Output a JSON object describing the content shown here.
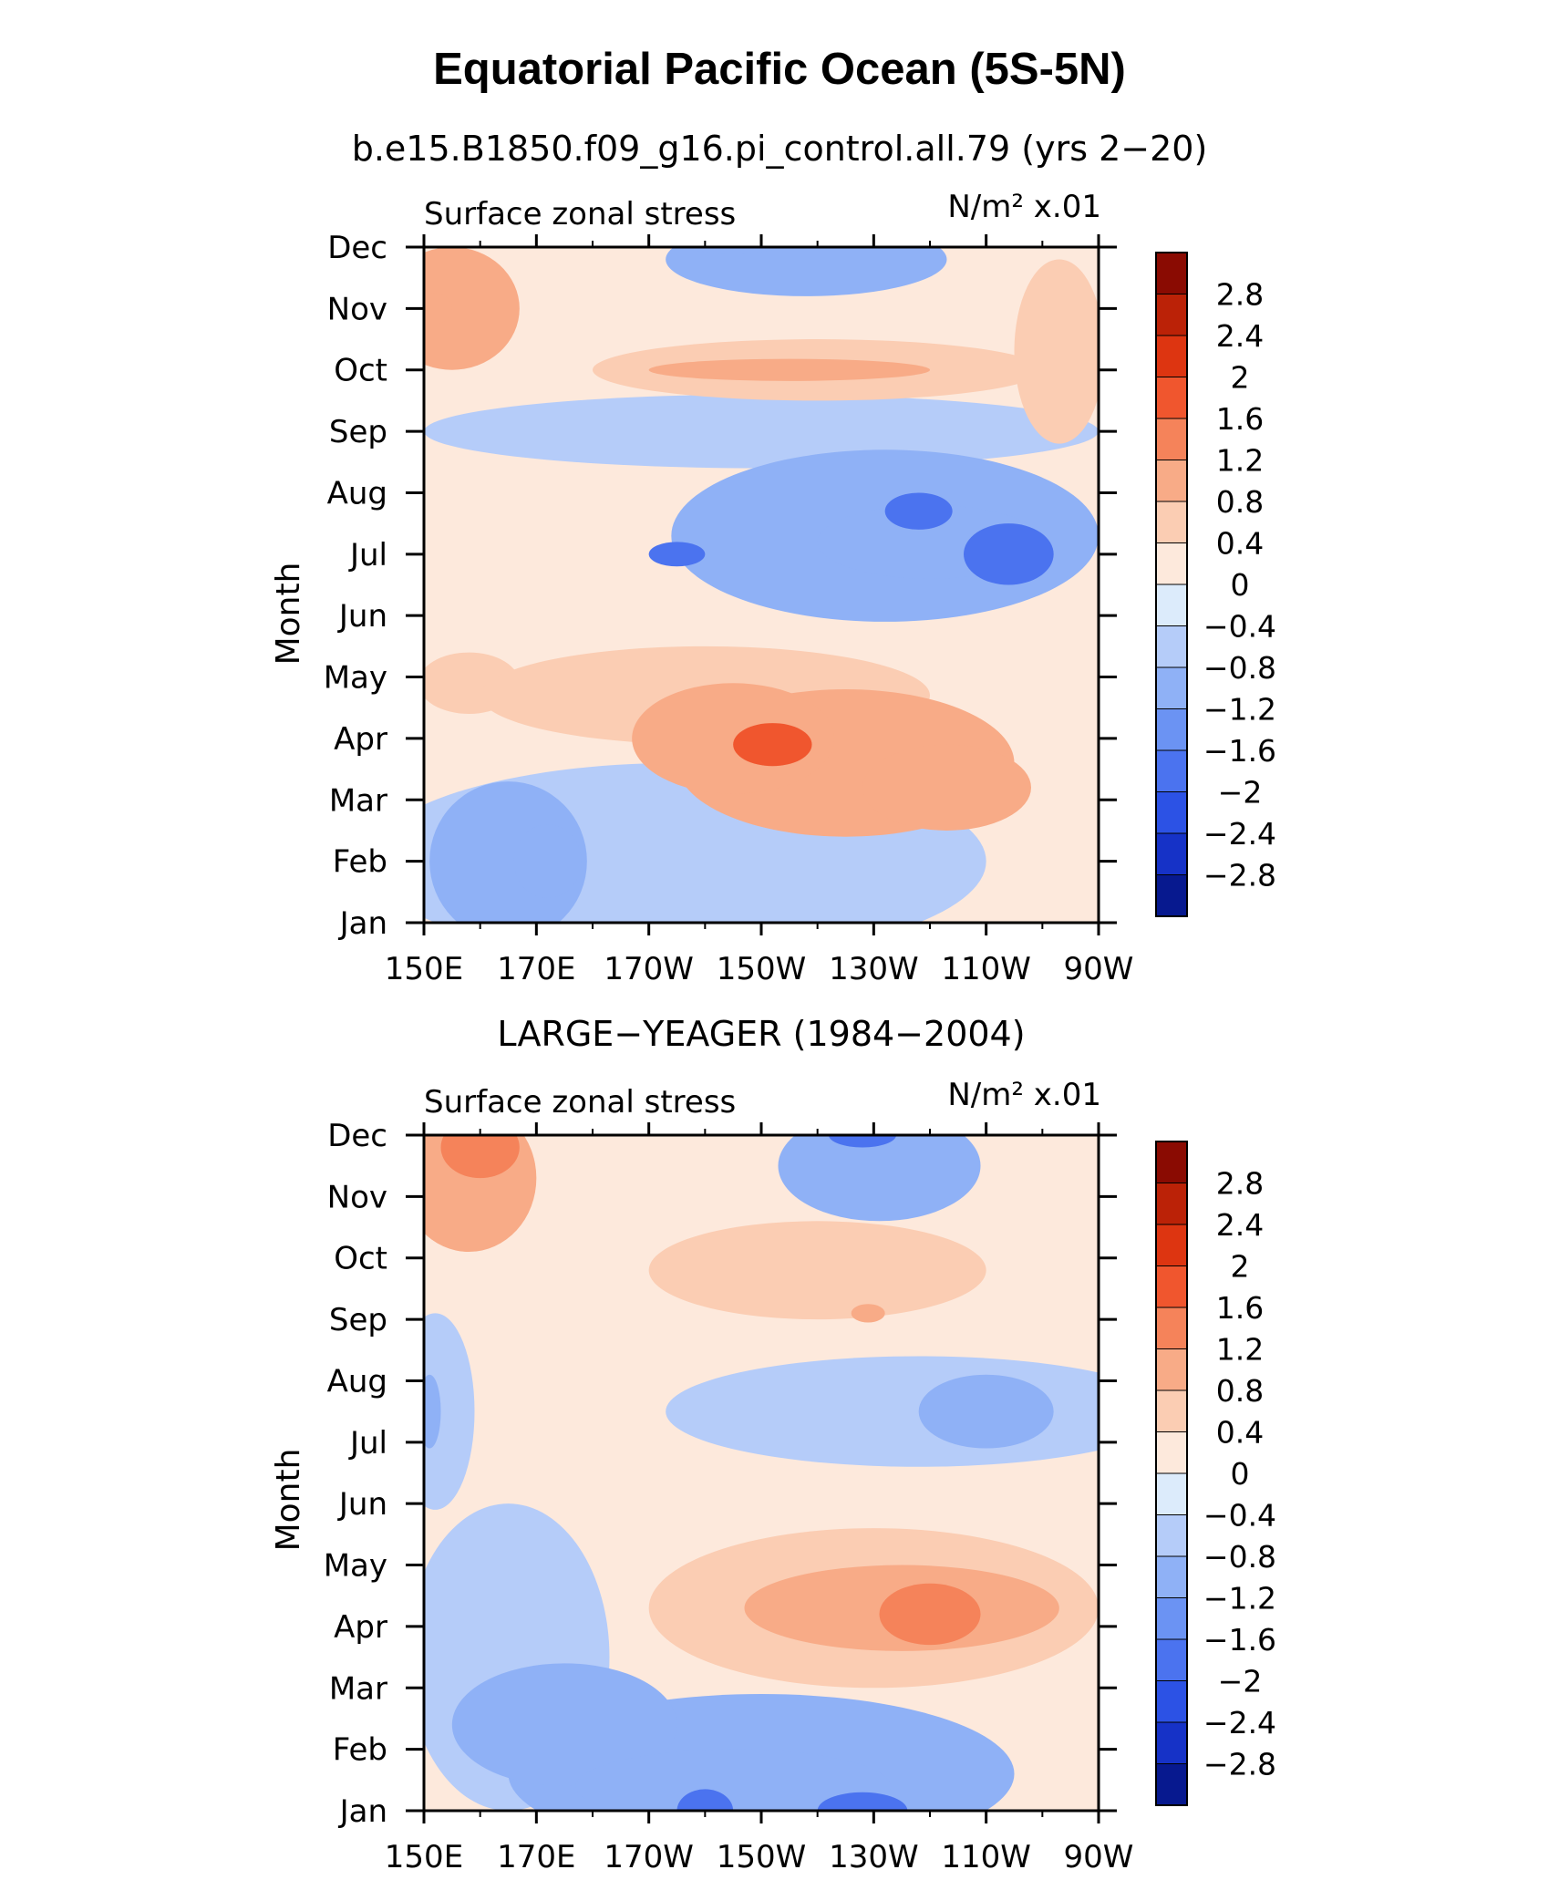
{
  "title": "Equatorial Pacific Ocean (5S-5N)",
  "colors": {
    "levels_neg": [
      "#dcebfb",
      "#b5ccf9",
      "#8fb1f6",
      "#6b93f3",
      "#4b73ef",
      "#2c52e5",
      "#1632c7",
      "#07198f"
    ],
    "levels_pos": [
      "#fde9dc",
      "#fbcdb3",
      "#f8ab87",
      "#f5835a",
      "#f0562e",
      "#dd3511",
      "#bb2207",
      "#8a0b02"
    ],
    "axis": "#000000"
  },
  "chart_data": [
    {
      "type": "heatmap",
      "title": "b.e15.B1850.f09_g16.pi_control.all.79 (yrs 2−20)",
      "left_label": "Surface zonal stress",
      "right_label_units": "N/m²",
      "right_label_scale": "x.01",
      "ylabel": "Month",
      "x_ticks": [
        "150E",
        "170E",
        "170W",
        "150W",
        "130W",
        "110W",
        "90W"
      ],
      "x_lon": [
        150,
        170,
        190,
        210,
        230,
        250,
        270
      ],
      "y_ticks": [
        "Jan",
        "Feb",
        "Mar",
        "Apr",
        "May",
        "Jun",
        "Jul",
        "Aug",
        "Sep",
        "Oct",
        "Nov",
        "Dec"
      ],
      "xlim": [
        150,
        270
      ],
      "ylim": [
        1,
        12
      ],
      "colorbar_labels": [
        "2.8",
        "2.4",
        "2",
        "1.6",
        "1.2",
        "0.8",
        "0.4",
        "0",
        "−0.4",
        "−0.8",
        "−1.2",
        "−1.6",
        "−2",
        "−2.4",
        "−2.8"
      ],
      "features": [
        {
          "lon": 195,
          "month": 2.0,
          "value": -0.5,
          "rx": 55,
          "ry": 1.6
        },
        {
          "lon": 165,
          "month": 2.0,
          "value": -0.8,
          "rx": 14,
          "ry": 1.3
        },
        {
          "lon": 172,
          "month": 2.0,
          "value": -1.0,
          "rx": 6,
          "ry": 0.6
        },
        {
          "lon": 225,
          "month": 3.6,
          "value": 0.8,
          "rx": 30,
          "ry": 1.2
        },
        {
          "lon": 205,
          "month": 4.0,
          "value": 1.2,
          "rx": 18,
          "ry": 0.9
        },
        {
          "lon": 212,
          "month": 3.9,
          "value": 1.6,
          "rx": 7,
          "ry": 0.35
        },
        {
          "lon": 243,
          "month": 3.2,
          "value": 0.8,
          "rx": 15,
          "ry": 0.7
        },
        {
          "lon": 200,
          "month": 4.7,
          "value": 0.6,
          "rx": 40,
          "ry": 0.8
        },
        {
          "lon": 158,
          "month": 4.9,
          "value": 0.4,
          "rx": 9,
          "ry": 0.5
        },
        {
          "lon": 232,
          "month": 7.3,
          "value": -0.8,
          "rx": 38,
          "ry": 1.4
        },
        {
          "lon": 240,
          "month": 7.2,
          "value": -1.2,
          "rx": 20,
          "ry": 0.6
        },
        {
          "lon": 254,
          "month": 7.0,
          "value": -1.6,
          "rx": 8,
          "ry": 0.5
        },
        {
          "lon": 238,
          "month": 7.7,
          "value": -1.6,
          "rx": 6,
          "ry": 0.3
        },
        {
          "lon": 195,
          "month": 7.0,
          "value": -1.6,
          "rx": 5,
          "ry": 0.2
        },
        {
          "lon": 210,
          "month": 9.0,
          "value": -0.4,
          "rx": 60,
          "ry": 0.6
        },
        {
          "lon": 220,
          "month": 10.0,
          "value": 0.4,
          "rx": 40,
          "ry": 0.5
        },
        {
          "lon": 215,
          "month": 10.0,
          "value": 0.8,
          "rx": 25,
          "ry": 0.18
        },
        {
          "lon": 155,
          "month": 11.0,
          "value": 0.8,
          "rx": 12,
          "ry": 1.0
        },
        {
          "lon": 152,
          "month": 11.0,
          "value": 1.2,
          "rx": 3,
          "ry": 0.25
        },
        {
          "lon": 218,
          "month": 11.8,
          "value": -0.8,
          "rx": 25,
          "ry": 0.6
        },
        {
          "lon": 205,
          "month": 12.0,
          "value": -1.2,
          "rx": 8,
          "ry": 0.1
        },
        {
          "lon": 263,
          "month": 10.3,
          "value": 0.6,
          "rx": 8,
          "ry": 1.5
        }
      ]
    },
    {
      "type": "heatmap",
      "title": "LARGE−YEAGER (1984−2004)",
      "left_label": "Surface zonal stress",
      "right_label_units": "N/m²",
      "right_label_scale": "x.01",
      "ylabel": "Month",
      "x_ticks": [
        "150E",
        "170E",
        "170W",
        "150W",
        "130W",
        "110W",
        "90W"
      ],
      "x_lon": [
        150,
        170,
        190,
        210,
        230,
        250,
        270
      ],
      "y_ticks": [
        "Jan",
        "Feb",
        "Mar",
        "Apr",
        "May",
        "Jun",
        "Jul",
        "Aug",
        "Sep",
        "Oct",
        "Nov",
        "Dec"
      ],
      "xlim": [
        150,
        270
      ],
      "ylim": [
        1,
        12
      ],
      "colorbar_labels": [
        "2.8",
        "2.4",
        "2",
        "1.6",
        "1.2",
        "0.8",
        "0.4",
        "0",
        "−0.4",
        "−0.8",
        "−1.2",
        "−1.6",
        "−2",
        "−2.4",
        "−2.8"
      ],
      "features": [
        {
          "lon": 210,
          "month": 1.6,
          "value": -0.8,
          "rx": 45,
          "ry": 1.3
        },
        {
          "lon": 175,
          "month": 2.4,
          "value": -1.2,
          "rx": 20,
          "ry": 1.0
        },
        {
          "lon": 205,
          "month": 1.4,
          "value": -1.2,
          "rx": 28,
          "ry": 0.6
        },
        {
          "lon": 200,
          "month": 1.0,
          "value": -1.6,
          "rx": 5,
          "ry": 0.35
        },
        {
          "lon": 228,
          "month": 1.0,
          "value": -1.6,
          "rx": 8,
          "ry": 0.3
        },
        {
          "lon": 165,
          "month": 3.5,
          "value": -0.5,
          "rx": 18,
          "ry": 2.5
        },
        {
          "lon": 152,
          "month": 7.5,
          "value": -0.6,
          "rx": 7,
          "ry": 1.6
        },
        {
          "lon": 151,
          "month": 7.5,
          "value": -1.2,
          "rx": 2,
          "ry": 0.6
        },
        {
          "lon": 230,
          "month": 4.3,
          "value": 0.6,
          "rx": 40,
          "ry": 1.3
        },
        {
          "lon": 235,
          "month": 4.3,
          "value": 1.0,
          "rx": 28,
          "ry": 0.7
        },
        {
          "lon": 240,
          "month": 4.2,
          "value": 1.4,
          "rx": 9,
          "ry": 0.5
        },
        {
          "lon": 238,
          "month": 7.5,
          "value": -0.6,
          "rx": 45,
          "ry": 0.9
        },
        {
          "lon": 250,
          "month": 7.5,
          "value": -1.0,
          "rx": 12,
          "ry": 0.6
        },
        {
          "lon": 220,
          "month": 9.8,
          "value": 0.5,
          "rx": 30,
          "ry": 0.8
        },
        {
          "lon": 229,
          "month": 9.1,
          "value": 0.8,
          "rx": 3,
          "ry": 0.15
        },
        {
          "lon": 158,
          "month": 11.3,
          "value": 0.8,
          "rx": 12,
          "ry": 1.2
        },
        {
          "lon": 160,
          "month": 11.8,
          "value": 1.4,
          "rx": 7,
          "ry": 0.5
        },
        {
          "lon": 231,
          "month": 11.5,
          "value": -0.8,
          "rx": 18,
          "ry": 0.9
        },
        {
          "lon": 228,
          "month": 12.0,
          "value": -1.6,
          "rx": 6,
          "ry": 0.2
        },
        {
          "lon": 268,
          "month": 8.0,
          "value": 0.3,
          "rx": 3,
          "ry": 3.0
        }
      ]
    }
  ]
}
